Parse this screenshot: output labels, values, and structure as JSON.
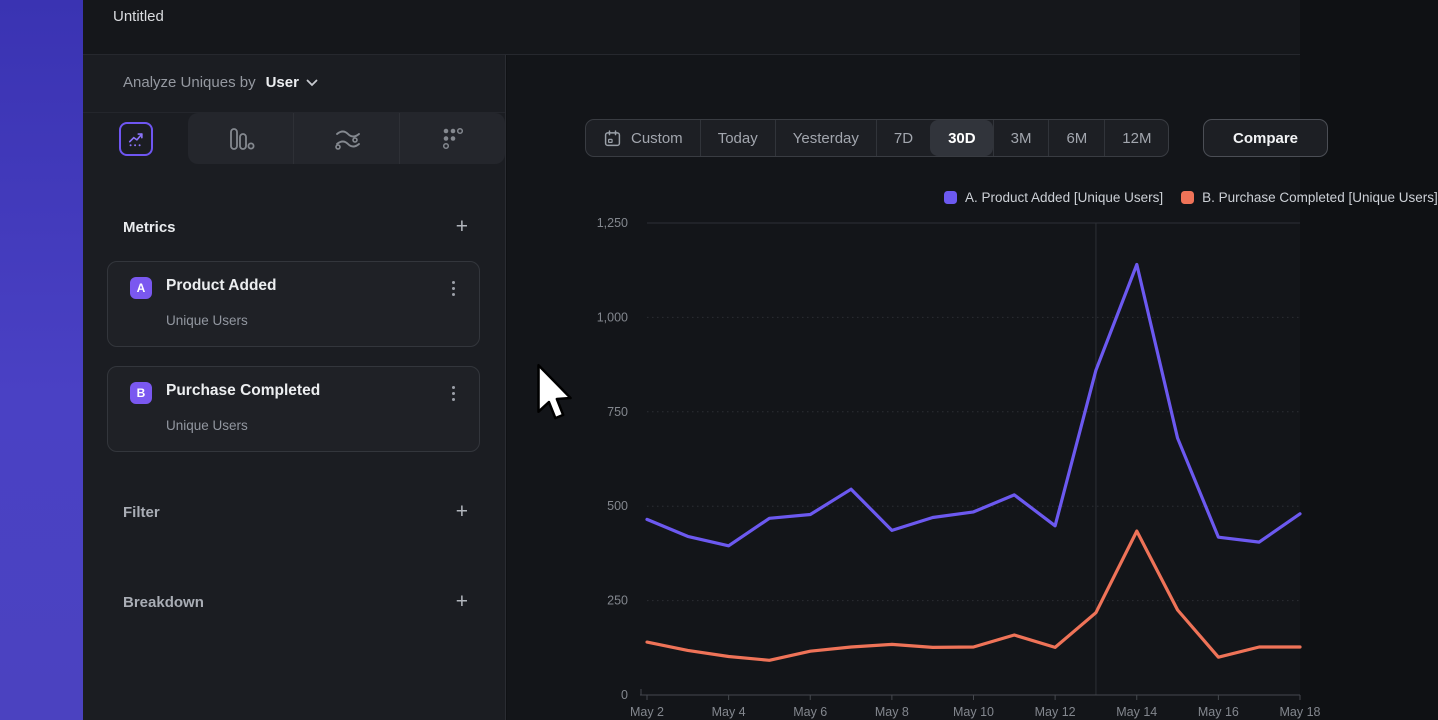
{
  "window": {
    "title": "Untitled"
  },
  "sidebar": {
    "analyze_label": "Analyze Uniques by",
    "analyze_value": "User",
    "tabs": [
      {
        "icon": "insights-icon",
        "selected": true
      },
      {
        "icon": "funnels-icon",
        "selected": false
      },
      {
        "icon": "flows-icon",
        "selected": false
      },
      {
        "icon": "retention-icon",
        "selected": false
      }
    ],
    "metrics": {
      "title": "Metrics",
      "add_label": "+",
      "items": [
        {
          "badge": "A",
          "name": "Product Added",
          "subtitle": "Unique Users"
        },
        {
          "badge": "B",
          "name": "Purchase Completed",
          "subtitle": "Unique Users"
        }
      ]
    },
    "filter": {
      "label": "Filter",
      "add_label": "+"
    },
    "breakdown": {
      "label": "Breakdown",
      "add_label": "+"
    }
  },
  "toolbar": {
    "ranges": [
      {
        "label": "Custom",
        "selected": false,
        "has_calendar_icon": true
      },
      {
        "label": "Today",
        "selected": false
      },
      {
        "label": "Yesterday",
        "selected": false
      },
      {
        "label": "7D",
        "selected": false
      },
      {
        "label": "30D",
        "selected": true
      },
      {
        "label": "3M",
        "selected": false
      },
      {
        "label": "6M",
        "selected": false
      },
      {
        "label": "12M",
        "selected": false
      }
    ],
    "compare_label": "Compare"
  },
  "legend": [
    {
      "label": "A. Product Added [Unique Users]",
      "color": "#6c59f0"
    },
    {
      "label": "B. Purchase Completed [Unique Users]",
      "color": "#ef7358"
    }
  ],
  "colors": {
    "accent": "#6f56f2",
    "series_a": "#6c59f0",
    "series_b": "#ef7358",
    "badge": "#7a58f0"
  },
  "chart_data": {
    "type": "line",
    "x": [
      "May 2",
      "May 3",
      "May 4",
      "May 5",
      "May 6",
      "May 7",
      "May 8",
      "May 9",
      "May 10",
      "May 11",
      "May 12",
      "May 13",
      "May 14",
      "May 15",
      "May 16",
      "May 17",
      "May 18"
    ],
    "series": [
      {
        "name": "A. Product Added [Unique Users]",
        "color": "#6c59f0",
        "values": [
          465,
          420,
          395,
          468,
          478,
          545,
          436,
          470,
          485,
          530,
          448,
          860,
          1140,
          680,
          418,
          405,
          480
        ]
      },
      {
        "name": "B. Purchase Completed [Unique Users]",
        "color": "#ef7358",
        "values": [
          140,
          118,
          102,
          92,
          116,
          127,
          134,
          126,
          127,
          159,
          126,
          218,
          434,
          225,
          100,
          127,
          127
        ]
      }
    ],
    "ylim": [
      0,
      1250
    ],
    "ytick_values": [
      0,
      250,
      500,
      750,
      1000,
      1250
    ],
    "ytick_labels": [
      "0",
      "250",
      "500",
      "750",
      "1,000",
      "1,250"
    ],
    "xtick_step": 2,
    "vertical_gridline_at": "May 13",
    "grid": "horizontal dotted, top line solid",
    "legend_position": "top-right"
  }
}
